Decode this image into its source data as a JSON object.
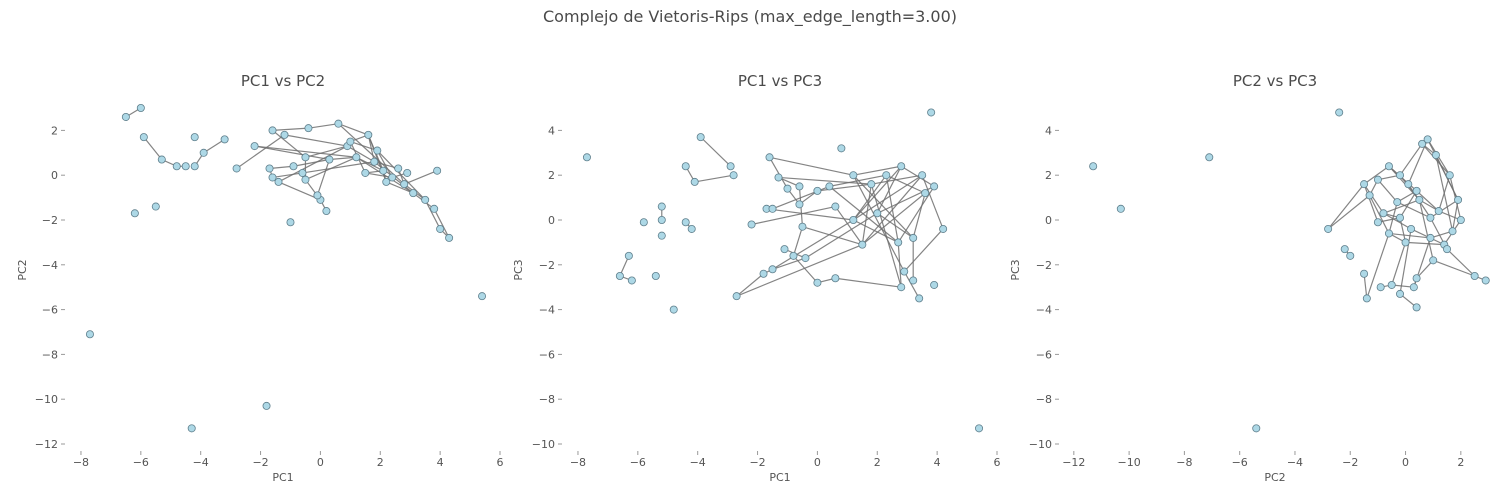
{
  "figure": {
    "suptitle": "Complejo de Vietoris-Rips (max_edge_length=3.00)",
    "marker_color": "#add8e6",
    "edge_color": "#696969"
  },
  "chart_data": [
    {
      "type": "scatter",
      "title": "PC1 vs PC2",
      "xlabel": "PC1",
      "ylabel": "PC2",
      "xlim": [
        -8.5,
        6.0
      ],
      "ylim": [
        -12.0,
        3.0
      ],
      "xticks": [
        -8,
        -6,
        -4,
        -2,
        0,
        2,
        4,
        6
      ],
      "xtick_labels": [
        "−8",
        "−6",
        "−4",
        "−2",
        "0",
        "2",
        "4",
        "6"
      ],
      "yticks": [
        2,
        0,
        -2,
        -4,
        -6,
        -8,
        -10,
        -12
      ],
      "ytick_labels": [
        "2",
        "0",
        "−2",
        "−4",
        "−6",
        "−8",
        "−10",
        "−12"
      ],
      "points": [
        [
          -6.0,
          3.0
        ],
        [
          -6.5,
          2.6
        ],
        [
          -5.9,
          1.7
        ],
        [
          -5.3,
          0.7
        ],
        [
          -4.8,
          0.4
        ],
        [
          -4.5,
          0.4
        ],
        [
          -3.2,
          1.6
        ],
        [
          -3.9,
          1.0
        ],
        [
          -4.2,
          1.7
        ],
        [
          -4.2,
          0.4
        ],
        [
          -2.8,
          0.3
        ],
        [
          -1.6,
          2.0
        ],
        [
          -1.2,
          1.8
        ],
        [
          -0.4,
          2.1
        ],
        [
          0.6,
          2.3
        ],
        [
          1.6,
          1.8
        ],
        [
          -2.2,
          1.3
        ],
        [
          -1.7,
          0.3
        ],
        [
          -0.9,
          0.4
        ],
        [
          -0.5,
          0.8
        ],
        [
          0.3,
          0.7
        ],
        [
          0.9,
          1.3
        ],
        [
          1.2,
          0.8
        ],
        [
          1.8,
          0.6
        ],
        [
          2.1,
          0.2
        ],
        [
          2.6,
          0.3
        ],
        [
          2.2,
          -0.3
        ],
        [
          2.8,
          -0.4
        ],
        [
          3.1,
          -0.8
        ],
        [
          3.5,
          -1.1
        ],
        [
          3.8,
          -1.5
        ],
        [
          4.0,
          -2.4
        ],
        [
          4.3,
          -2.8
        ],
        [
          3.9,
          0.2
        ],
        [
          -1.4,
          -0.3
        ],
        [
          -0.5,
          -0.2
        ],
        [
          0.0,
          -1.1
        ],
        [
          -0.1,
          -0.9
        ],
        [
          0.2,
          -1.6
        ],
        [
          -1.0,
          -2.1
        ],
        [
          -0.6,
          0.1
        ],
        [
          -1.6,
          -0.1
        ],
        [
          -6.2,
          -1.7
        ],
        [
          -5.5,
          -1.4
        ],
        [
          5.4,
          -5.4
        ],
        [
          -7.7,
          -7.1
        ],
        [
          -4.3,
          -11.3
        ],
        [
          -1.8,
          -10.3
        ],
        [
          1.0,
          1.5
        ],
        [
          1.9,
          1.1
        ],
        [
          2.4,
          -0.1
        ],
        [
          2.9,
          0.1
        ],
        [
          1.5,
          0.1
        ]
      ],
      "edges": [
        [
          0,
          1
        ],
        [
          2,
          3
        ],
        [
          3,
          4
        ],
        [
          4,
          5
        ],
        [
          6,
          7
        ],
        [
          7,
          9
        ],
        [
          10,
          12
        ],
        [
          11,
          13
        ],
        [
          13,
          14
        ],
        [
          14,
          15
        ],
        [
          15,
          23
        ],
        [
          16,
          20
        ],
        [
          17,
          18
        ],
        [
          18,
          20
        ],
        [
          19,
          21
        ],
        [
          20,
          22
        ],
        [
          21,
          23
        ],
        [
          22,
          24
        ],
        [
          23,
          25
        ],
        [
          24,
          26
        ],
        [
          25,
          27
        ],
        [
          26,
          28
        ],
        [
          27,
          29
        ],
        [
          28,
          30
        ],
        [
          29,
          31
        ],
        [
          30,
          32
        ],
        [
          31,
          32
        ],
        [
          27,
          33
        ],
        [
          34,
          36
        ],
        [
          35,
          36
        ],
        [
          36,
          38
        ],
        [
          19,
          35
        ],
        [
          40,
          41
        ],
        [
          41,
          17
        ],
        [
          12,
          21
        ],
        [
          15,
          26
        ],
        [
          16,
          22
        ],
        [
          14,
          27
        ],
        [
          22,
          28
        ],
        [
          48,
          52
        ],
        [
          49,
          50
        ],
        [
          50,
          51
        ],
        [
          52,
          24
        ],
        [
          48,
          15
        ],
        [
          49,
          29
        ],
        [
          11,
          19
        ],
        [
          37,
          20
        ],
        [
          34,
          21
        ],
        [
          35,
          22
        ],
        [
          40,
          23
        ],
        [
          48,
          49
        ],
        [
          52,
          50
        ],
        [
          23,
          28
        ],
        [
          15,
          24
        ]
      ]
    },
    {
      "type": "scatter",
      "title": "PC1 vs PC3",
      "xlabel": "PC1",
      "ylabel": "PC3",
      "xlim": [
        -8.5,
        6.0
      ],
      "ylim": [
        -10.0,
        5.0
      ],
      "xticks": [
        -8,
        -6,
        -4,
        -2,
        0,
        2,
        4,
        6
      ],
      "xtick_labels": [
        "−8",
        "−6",
        "−4",
        "−2",
        "0",
        "2",
        "4",
        "6"
      ],
      "yticks": [
        4,
        2,
        0,
        -2,
        -4,
        -6,
        -8,
        -10
      ],
      "ytick_labels": [
        "4",
        "2",
        "0",
        "−2",
        "−4",
        "−6",
        "−8",
        "−10"
      ],
      "points": [
        [
          -7.7,
          2.8
        ],
        [
          -3.9,
          3.7
        ],
        [
          -2.9,
          2.4
        ],
        [
          -4.4,
          2.4
        ],
        [
          -2.8,
          2.0
        ],
        [
          -4.1,
          1.7
        ],
        [
          -5.2,
          0.6
        ],
        [
          -5.8,
          -0.1
        ],
        [
          -5.2,
          0.0
        ],
        [
          -4.4,
          -0.1
        ],
        [
          -4.2,
          -0.4
        ],
        [
          -5.2,
          -0.7
        ],
        [
          -6.3,
          -1.6
        ],
        [
          -6.6,
          -2.5
        ],
        [
          -6.2,
          -2.7
        ],
        [
          -5.4,
          -2.5
        ],
        [
          -4.8,
          -4.0
        ],
        [
          -2.7,
          -3.4
        ],
        [
          -2.2,
          -0.2
        ],
        [
          -1.7,
          0.5
        ],
        [
          -1.5,
          0.5
        ],
        [
          -1.6,
          2.8
        ],
        [
          -1.3,
          1.9
        ],
        [
          -1.0,
          1.4
        ],
        [
          -0.6,
          1.5
        ],
        [
          -0.6,
          0.7
        ],
        [
          -0.5,
          -0.3
        ],
        [
          -0.8,
          -1.6
        ],
        [
          -0.4,
          -1.7
        ],
        [
          0.0,
          -2.8
        ],
        [
          -1.5,
          -2.2
        ],
        [
          -1.8,
          -2.4
        ],
        [
          -1.1,
          -1.3
        ],
        [
          0.6,
          -2.6
        ],
        [
          0.8,
          3.2
        ],
        [
          0.6,
          0.6
        ],
        [
          0.4,
          1.5
        ],
        [
          1.2,
          2.0
        ],
        [
          1.8,
          1.6
        ],
        [
          2.3,
          2.0
        ],
        [
          2.8,
          2.4
        ],
        [
          3.5,
          2.0
        ],
        [
          3.6,
          1.2
        ],
        [
          3.9,
          1.5
        ],
        [
          4.2,
          -0.4
        ],
        [
          3.2,
          -0.8
        ],
        [
          2.7,
          -1.0
        ],
        [
          2.9,
          -2.3
        ],
        [
          2.8,
          -3.0
        ],
        [
          3.2,
          -2.7
        ],
        [
          3.4,
          -3.5
        ],
        [
          3.9,
          -2.9
        ],
        [
          1.5,
          -1.1
        ],
        [
          1.2,
          0.0
        ],
        [
          2.0,
          0.3
        ],
        [
          3.8,
          4.8
        ],
        [
          5.4,
          -9.3
        ],
        [
          0.0,
          1.3
        ]
      ],
      "edges": [
        [
          1,
          2
        ],
        [
          3,
          5
        ],
        [
          4,
          5
        ],
        [
          6,
          8
        ],
        [
          9,
          10
        ],
        [
          13,
          14
        ],
        [
          21,
          23
        ],
        [
          22,
          24
        ],
        [
          23,
          25
        ],
        [
          24,
          26
        ],
        [
          26,
          27
        ],
        [
          27,
          29
        ],
        [
          28,
          30
        ],
        [
          30,
          31
        ],
        [
          31,
          17
        ],
        [
          32,
          28
        ],
        [
          29,
          33
        ],
        [
          33,
          48
        ],
        [
          21,
          37
        ],
        [
          22,
          38
        ],
        [
          36,
          39
        ],
        [
          37,
          40
        ],
        [
          38,
          41
        ],
        [
          39,
          42
        ],
        [
          40,
          43
        ],
        [
          41,
          44
        ],
        [
          42,
          45
        ],
        [
          43,
          46
        ],
        [
          44,
          47
        ],
        [
          45,
          49
        ],
        [
          46,
          48
        ],
        [
          47,
          50
        ],
        [
          35,
          52
        ],
        [
          53,
          46
        ],
        [
          54,
          45
        ],
        [
          18,
          35
        ],
        [
          19,
          53
        ],
        [
          20,
          36
        ],
        [
          25,
          57
        ],
        [
          26,
          52
        ],
        [
          57,
          38
        ],
        [
          53,
          40
        ],
        [
          52,
          41
        ],
        [
          36,
          46
        ],
        [
          37,
          45
        ],
        [
          38,
          52
        ],
        [
          39,
          53
        ],
        [
          40,
          54
        ],
        [
          42,
          52
        ],
        [
          41,
          53
        ],
        [
          54,
          43
        ],
        [
          39,
          46
        ],
        [
          37,
          47
        ],
        [
          38,
          48
        ],
        [
          17,
          52
        ],
        [
          30,
          53
        ],
        [
          28,
          54
        ],
        [
          12,
          13
        ]
      ]
    },
    {
      "type": "scatter",
      "title": "PC2 vs PC3",
      "xlabel": "PC2",
      "ylabel": "PC3",
      "xlim": [
        -12.5,
        3.2
      ],
      "ylim": [
        -10.0,
        5.0
      ],
      "xticks": [
        -12,
        -10,
        -8,
        -6,
        -4,
        -2,
        0,
        2
      ],
      "xtick_labels": [
        "−12",
        "−10",
        "−8",
        "−6",
        "−4",
        "−2",
        "0",
        "2"
      ],
      "yticks": [
        4,
        2,
        0,
        -2,
        -4,
        -6,
        -8,
        -10
      ],
      "ytick_labels": [
        "4",
        "2",
        "0",
        "−2",
        "−4",
        "−6",
        "−8",
        "−10"
      ],
      "points": [
        [
          -11.3,
          2.4
        ],
        [
          -10.3,
          0.5
        ],
        [
          -7.1,
          2.8
        ],
        [
          -5.4,
          -9.3
        ],
        [
          -2.4,
          4.8
        ],
        [
          -2.8,
          -0.4
        ],
        [
          -2.0,
          -1.6
        ],
        [
          -2.2,
          -1.3
        ],
        [
          -1.5,
          -2.4
        ],
        [
          -1.4,
          -3.5
        ],
        [
          -0.9,
          -3.0
        ],
        [
          -0.5,
          -2.9
        ],
        [
          -0.2,
          -3.3
        ],
        [
          0.3,
          -3.0
        ],
        [
          0.4,
          -3.9
        ],
        [
          0.4,
          -2.6
        ],
        [
          -1.0,
          -0.1
        ],
        [
          -1.3,
          1.1
        ],
        [
          -1.5,
          1.6
        ],
        [
          -1.0,
          1.8
        ],
        [
          -0.6,
          2.4
        ],
        [
          -0.2,
          2.0
        ],
        [
          0.1,
          1.6
        ],
        [
          0.6,
          3.4
        ],
        [
          0.8,
          3.6
        ],
        [
          1.1,
          2.9
        ],
        [
          1.6,
          2.0
        ],
        [
          1.9,
          0.9
        ],
        [
          2.0,
          0.0
        ],
        [
          1.7,
          -0.5
        ],
        [
          1.4,
          -1.1
        ],
        [
          0.9,
          -0.8
        ],
        [
          0.2,
          -0.4
        ],
        [
          -0.6,
          -0.6
        ],
        [
          -0.8,
          0.3
        ],
        [
          -0.3,
          0.8
        ],
        [
          0.5,
          0.9
        ],
        [
          0.9,
          0.1
        ],
        [
          1.0,
          -1.8
        ],
        [
          1.5,
          -1.3
        ],
        [
          2.5,
          -2.5
        ],
        [
          2.9,
          -2.7
        ],
        [
          1.2,
          0.4
        ],
        [
          0.4,
          1.3
        ],
        [
          -0.2,
          0.1
        ],
        [
          0.0,
          -1.0
        ]
      ],
      "edges": [
        [
          5,
          17
        ],
        [
          17,
          19
        ],
        [
          19,
          21
        ],
        [
          21,
          23
        ],
        [
          23,
          25
        ],
        [
          25,
          27
        ],
        [
          27,
          29
        ],
        [
          29,
          31
        ],
        [
          31,
          33
        ],
        [
          33,
          35
        ],
        [
          35,
          37
        ],
        [
          37,
          39
        ],
        [
          18,
          20
        ],
        [
          20,
          22
        ],
        [
          22,
          24
        ],
        [
          24,
          26
        ],
        [
          26,
          28
        ],
        [
          28,
          30
        ],
        [
          30,
          32
        ],
        [
          32,
          34
        ],
        [
          34,
          36
        ],
        [
          36,
          38
        ],
        [
          38,
          40
        ],
        [
          40,
          41
        ],
        [
          10,
          11
        ],
        [
          11,
          13
        ],
        [
          13,
          15
        ],
        [
          12,
          14
        ],
        [
          8,
          9
        ],
        [
          9,
          33
        ],
        [
          6,
          7
        ],
        [
          16,
          18
        ],
        [
          42,
          43
        ],
        [
          43,
          44
        ],
        [
          44,
          45
        ],
        [
          45,
          30
        ],
        [
          42,
          28
        ],
        [
          43,
          20
        ],
        [
          44,
          16
        ],
        [
          45,
          11
        ],
        [
          36,
          42
        ],
        [
          35,
          43
        ],
        [
          34,
          44
        ],
        [
          33,
          45
        ],
        [
          19,
          35
        ],
        [
          21,
          36
        ],
        [
          22,
          37
        ],
        [
          26,
          42
        ],
        [
          25,
          29
        ],
        [
          18,
          34
        ],
        [
          17,
          33
        ],
        [
          15,
          38
        ],
        [
          13,
          31
        ],
        [
          12,
          32
        ],
        [
          5,
          18
        ],
        [
          27,
          37
        ],
        [
          20,
          36
        ],
        [
          23,
          26
        ],
        [
          24,
          27
        ],
        [
          39,
          40
        ]
      ]
    }
  ]
}
